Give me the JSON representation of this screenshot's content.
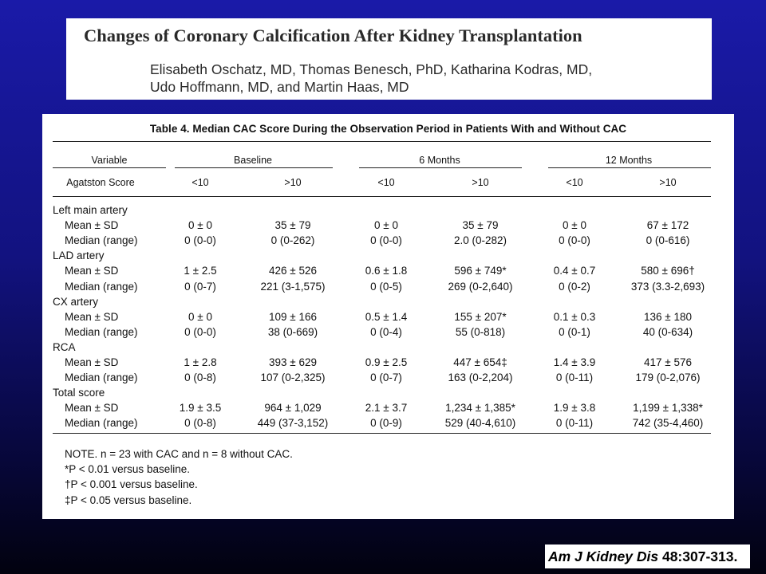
{
  "paper": {
    "title": "Changes of Coronary Calcification After Kidney Transplantation",
    "authors_line1": "Elisabeth Oschatz, MD, Thomas Benesch, PhD, Katharina Kodras, MD,",
    "authors_line2": "Udo Hoffmann, MD, and Martin Haas, MD"
  },
  "table": {
    "caption": "Table 4.  Median CAC Score During the Observation Period in Patients With and Without CAC",
    "header": {
      "variable": "Variable",
      "periods": [
        "Baseline",
        "6 Months",
        "12 Months"
      ],
      "agatston_label": "Agatston Score",
      "subcols": [
        "<10",
        ">10",
        "<10",
        ">10",
        "<10",
        ">10"
      ]
    },
    "groups": [
      {
        "name": "Left main artery",
        "rows": [
          {
            "label": "Mean ± SD",
            "values": [
              "0 ± 0",
              "35 ± 79",
              "0 ± 0",
              "35 ± 79",
              "0 ± 0",
              "67 ± 172"
            ]
          },
          {
            "label": "Median (range)",
            "values": [
              "0 (0-0)",
              "0 (0-262)",
              "0 (0-0)",
              "2.0 (0-282)",
              "0 (0-0)",
              "0 (0-616)"
            ]
          }
        ]
      },
      {
        "name": "LAD artery",
        "rows": [
          {
            "label": "Mean ± SD",
            "values": [
              "1 ± 2.5",
              "426 ± 526",
              "0.6 ± 1.8",
              "596 ± 749*",
              "0.4 ± 0.7",
              "580 ± 696†"
            ]
          },
          {
            "label": "Median (range)",
            "values": [
              "0 (0-7)",
              "221 (3-1,575)",
              "0 (0-5)",
              "269 (0-2,640)",
              "0 (0-2)",
              "373 (3.3-2,693)"
            ]
          }
        ]
      },
      {
        "name": "CX artery",
        "rows": [
          {
            "label": "Mean ± SD",
            "values": [
              "0 ± 0",
              "109 ± 166",
              "0.5 ± 1.4",
              "155 ± 207*",
              "0.1 ± 0.3",
              "136 ± 180"
            ]
          },
          {
            "label": "Median (range)",
            "values": [
              "0 (0-0)",
              "38 (0-669)",
              "0 (0-4)",
              "55 (0-818)",
              "0 (0-1)",
              "40 (0-634)"
            ]
          }
        ]
      },
      {
        "name": "RCA",
        "rows": [
          {
            "label": "Mean ± SD",
            "values": [
              "1 ± 2.8",
              "393 ± 629",
              "0.9 ± 2.5",
              "447 ± 654‡",
              "1.4 ± 3.9",
              "417 ± 576"
            ]
          },
          {
            "label": "Median (range)",
            "values": [
              "0 (0-8)",
              "107 (0-2,325)",
              "0 (0-7)",
              "163 (0-2,204)",
              "0 (0-11)",
              "179 (0-2,076)"
            ]
          }
        ]
      },
      {
        "name": "Total score",
        "rows": [
          {
            "label": "Mean ± SD",
            "values": [
              "1.9 ± 3.5",
              "964 ± 1,029",
              "2.1 ± 3.7",
              "1,234 ± 1,385*",
              "1.9 ± 3.8",
              "1,199 ± 1,338*"
            ]
          },
          {
            "label": "Median (range)",
            "values": [
              "0 (0-8)",
              "449 (37-3,152)",
              "0 (0-9)",
              "529 (40-4,610)",
              "0 (0-11)",
              "742 (35-4,460)"
            ]
          }
        ]
      }
    ],
    "notes": [
      "NOTE. n = 23 with CAC and n = 8 without CAC.",
      "*P < 0.01 versus baseline.",
      "†P < 0.001 versus baseline.",
      "‡P < 0.05 versus baseline."
    ]
  },
  "citation": {
    "journal": "Am J Kidney Dis",
    "ref": " 48:307-313."
  }
}
